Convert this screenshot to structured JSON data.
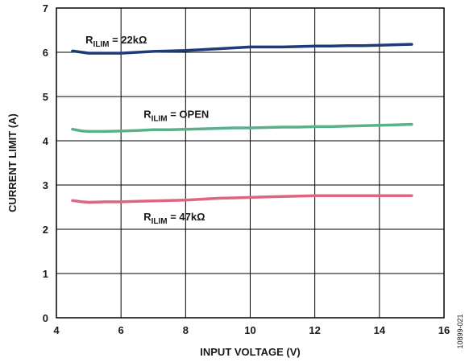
{
  "chart_data": {
    "type": "line",
    "title": "",
    "xlabel": "INPUT VOLTAGE (V)",
    "ylabel": "CURRENT LIMIT (A)",
    "xlim": [
      4,
      16
    ],
    "ylim": [
      0,
      7
    ],
    "xticks": [
      4,
      6,
      8,
      10,
      12,
      14,
      16
    ],
    "yticks": [
      0,
      1,
      2,
      3,
      4,
      5,
      6,
      7
    ],
    "grid": true,
    "figure_id": "10899-021",
    "series": [
      {
        "label_main": "R",
        "label_sub": "ILIM",
        "label_rest": " = 22kΩ",
        "color": "#1f3a7a",
        "label_at": [
          4.9,
          6.2
        ],
        "x": [
          4.5,
          4.8,
          5.0,
          5.5,
          6.0,
          6.5,
          7.0,
          7.5,
          8.0,
          8.5,
          9.0,
          9.5,
          10.0,
          10.5,
          11.0,
          11.5,
          12.0,
          12.5,
          13.0,
          13.5,
          14.0,
          14.5,
          15.0
        ],
        "y": [
          6.03,
          6.0,
          5.98,
          5.98,
          5.98,
          6.0,
          6.02,
          6.03,
          6.04,
          6.06,
          6.08,
          6.1,
          6.12,
          6.12,
          6.12,
          6.13,
          6.14,
          6.14,
          6.15,
          6.15,
          6.16,
          6.17,
          6.18
        ]
      },
      {
        "label_main": "R",
        "label_sub": "ILIM",
        "label_rest": " = OPEN",
        "color": "#5ab089",
        "label_at": [
          6.7,
          4.52
        ],
        "x": [
          4.5,
          4.8,
          5.0,
          5.5,
          6.0,
          6.5,
          7.0,
          7.5,
          8.0,
          8.5,
          9.0,
          9.5,
          10.0,
          10.5,
          11.0,
          11.5,
          12.0,
          12.5,
          13.0,
          13.5,
          14.0,
          14.5,
          15.0
        ],
        "y": [
          4.26,
          4.22,
          4.21,
          4.21,
          4.22,
          4.23,
          4.25,
          4.25,
          4.26,
          4.27,
          4.28,
          4.29,
          4.29,
          4.3,
          4.31,
          4.31,
          4.32,
          4.32,
          4.33,
          4.34,
          4.35,
          4.36,
          4.37
        ]
      },
      {
        "label_main": "R",
        "label_sub": "ILIM",
        "label_rest": " = 47kΩ",
        "color": "#e06580",
        "label_at": [
          6.7,
          2.2
        ],
        "x": [
          4.5,
          4.8,
          5.0,
          5.5,
          6.0,
          6.5,
          7.0,
          7.5,
          8.0,
          8.5,
          9.0,
          9.5,
          10.0,
          10.5,
          11.0,
          11.5,
          12.0,
          12.5,
          13.0,
          13.5,
          14.0,
          14.5,
          15.0
        ],
        "y": [
          2.65,
          2.62,
          2.61,
          2.62,
          2.62,
          2.63,
          2.64,
          2.65,
          2.66,
          2.68,
          2.7,
          2.71,
          2.72,
          2.73,
          2.74,
          2.75,
          2.76,
          2.76,
          2.76,
          2.76,
          2.76,
          2.76,
          2.76
        ]
      }
    ]
  }
}
